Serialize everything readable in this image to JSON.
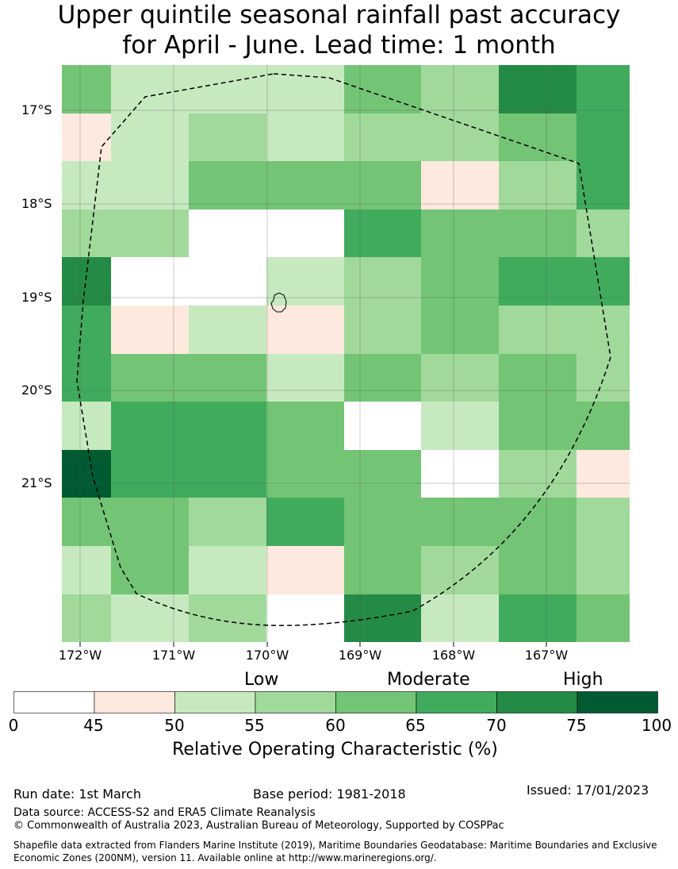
{
  "title": {
    "line1": "Upper quintile seasonal rainfall past accuracy",
    "line2": "for April - June. Lead time: 1 month"
  },
  "map": {
    "lat_labels": [
      "17°S",
      "18°S",
      "19°S",
      "20°S",
      "21°S"
    ],
    "lon_labels": [
      "172°W",
      "171°W",
      "170°W",
      "169°W",
      "168°W",
      "167°W"
    ],
    "grid_colors": [
      [
        "#74c476",
        "#c7e9c0",
        "#c7e9c0",
        "#c7e9c0",
        "#74c476",
        "#a1d99b",
        "#238b45",
        "#41ab5d"
      ],
      [
        "#fee9df",
        "#c7e9c0",
        "#a1d99b",
        "#c7e9c0",
        "#a1d99b",
        "#a1d99b",
        "#74c476",
        "#41ab5d"
      ],
      [
        "#c7e9c0",
        "#c7e9c0",
        "#74c476",
        "#74c476",
        "#74c476",
        "#fee9df",
        "#a1d99b",
        "#41ab5d"
      ],
      [
        "#a1d99b",
        "#a1d99b",
        "#ffffff",
        "#ffffff",
        "#41ab5d",
        "#74c476",
        "#74c476",
        "#a1d99b"
      ],
      [
        "#238b45",
        "#ffffff",
        "#ffffff",
        "#c7e9c0",
        "#a1d99b",
        "#74c476",
        "#41ab5d",
        "#41ab5d"
      ],
      [
        "#41ab5d",
        "#fee9df",
        "#c7e9c0",
        "#fee9df",
        "#a1d99b",
        "#74c476",
        "#a1d99b",
        "#a1d99b"
      ],
      [
        "#41ab5d",
        "#74c476",
        "#74c476",
        "#c7e9c0",
        "#74c476",
        "#a1d99b",
        "#74c476",
        "#a1d99b"
      ],
      [
        "#c7e9c0",
        "#41ab5d",
        "#41ab5d",
        "#74c476",
        "#ffffff",
        "#c7e9c0",
        "#74c476",
        "#74c476"
      ],
      [
        "#005a32",
        "#41ab5d",
        "#41ab5d",
        "#74c476",
        "#74c476",
        "#ffffff",
        "#a1d99b",
        "#fee9df"
      ],
      [
        "#74c476",
        "#74c476",
        "#a1d99b",
        "#41ab5d",
        "#74c476",
        "#74c476",
        "#74c476",
        "#a1d99b"
      ],
      [
        "#c7e9c0",
        "#74c476",
        "#c7e9c0",
        "#fee9df",
        "#74c476",
        "#a1d99b",
        "#74c476",
        "#a1d99b"
      ],
      [
        "#a1d99b",
        "#c7e9c0",
        "#a1d99b",
        "#ffffff",
        "#238b45",
        "#c7e9c0",
        "#41ab5d",
        "#74c476"
      ]
    ]
  },
  "legend": {
    "categories": [
      "Low",
      "Moderate",
      "High"
    ],
    "ticks": [
      "0",
      "45",
      "50",
      "55",
      "60",
      "65",
      "70",
      "75",
      "100"
    ],
    "colors": [
      "#ffffff",
      "#fee9df",
      "#c7e9c0",
      "#a1d99b",
      "#74c476",
      "#41ab5d",
      "#238b45",
      "#005a32"
    ],
    "title": "Relative Operating Characteristic (%)"
  },
  "footer": {
    "run_date": "Run date: 1st March",
    "base_period": "Base period: 1981-2018",
    "issued": "Issued: 17/01/2023",
    "data_source": "Data source: ACCESS-S2 and ERA5 Climate Reanalysis",
    "copyright": "© Commonwealth of Australia 2023, Australian Bureau of Meteorology, Supported by COSPPac",
    "shapefile": "Shapefile data extracted from Flanders Marine Institute (2019), Maritime Boundaries Geodatabase: Maritime Boundaries and Exclusive Economic Zones (200NM), version 11. Available online at http://www.marineregions.org/."
  }
}
